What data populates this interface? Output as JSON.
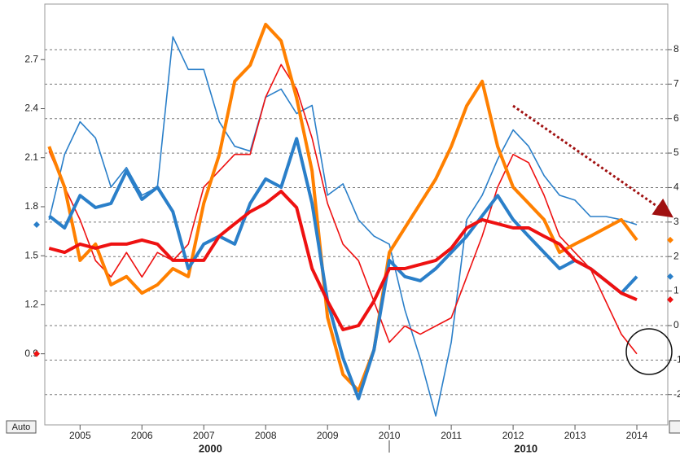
{
  "chart_data": {
    "type": "line",
    "x": [
      2004.5,
      2004.75,
      2005,
      2005.25,
      2005.5,
      2005.75,
      2006,
      2006.25,
      2006.5,
      2006.75,
      2007,
      2007.25,
      2007.5,
      2007.75,
      2008,
      2008.25,
      2008.5,
      2008.75,
      2009,
      2009.25,
      2009.5,
      2009.75,
      2010,
      2010.25,
      2010.5,
      2010.75,
      2011,
      2011.25,
      2011.5,
      2011.75,
      2012,
      2012.25,
      2012.5,
      2012.75,
      2013,
      2013.25,
      2013.5,
      2013.75,
      2014
    ],
    "xlim": [
      2004.43,
      2014.5
    ],
    "xticks": [
      2005,
      2006,
      2007,
      2008,
      2009,
      2010,
      2011,
      2012,
      2013,
      2014
    ],
    "x2lim": [
      1994.75,
      2014.5
    ],
    "x2ticks": [
      2000,
      2010
    ],
    "ylim": [
      0.465,
      3.04
    ],
    "yticks": [
      0.9,
      1.2,
      1.5,
      1.8,
      2.1,
      2.4,
      2.7
    ],
    "y2lim": [
      -2.88,
      9.32
    ],
    "y2ticks": [
      -2,
      -1,
      0,
      1,
      2,
      3,
      4,
      5,
      6,
      7,
      8
    ],
    "grid": true,
    "auto_label": "Auto",
    "series": [
      {
        "color": "#2a7fc9",
        "weight": "thin",
        "axis": "y",
        "values": [
          1.72,
          2.12,
          2.32,
          2.22,
          1.92,
          2.04,
          1.87,
          1.92,
          2.84,
          2.64,
          2.64,
          2.32,
          2.17,
          2.14,
          2.47,
          2.52,
          2.37,
          2.42,
          1.87,
          1.94,
          1.72,
          1.62,
          1.57,
          1.17,
          0.87,
          0.52,
          0.97,
          1.72,
          1.87,
          2.09,
          2.27,
          2.17,
          1.99,
          1.87,
          1.84,
          1.74,
          1.74,
          1.72,
          1.69
        ]
      },
      {
        "color": "#ee1111",
        "weight": "thin",
        "axis": "y",
        "values": [
          2.14,
          1.92,
          1.72,
          1.47,
          1.37,
          1.52,
          1.37,
          1.52,
          1.47,
          1.57,
          1.92,
          2.02,
          2.12,
          2.12,
          2.47,
          2.67,
          2.52,
          2.22,
          1.82,
          1.57,
          1.47,
          1.22,
          0.97,
          1.07,
          1.02,
          1.07,
          1.12,
          1.37,
          1.62,
          1.92,
          2.12,
          2.07,
          1.87,
          1.62,
          1.52,
          1.42,
          1.22,
          1.02,
          0.9
        ]
      },
      {
        "color": "#ff8000",
        "weight": "thick",
        "axis": "y2",
        "values": [
          5.19,
          4.01,
          1.89,
          2.36,
          1.18,
          1.42,
          0.94,
          1.18,
          1.65,
          1.42,
          3.54,
          4.95,
          7.08,
          7.55,
          8.73,
          8.25,
          6.6,
          4.48,
          0.24,
          -1.42,
          -1.89,
          -0.71,
          2.12,
          2.83,
          3.54,
          4.25,
          5.19,
          6.37,
          7.08,
          5.19,
          4.01,
          3.54,
          3.07,
          2.12,
          2.36,
          2.59,
          2.83,
          3.07,
          2.48
        ]
      },
      {
        "color": "#2a7fc9",
        "weight": "thick",
        "axis": "y2",
        "values": [
          3.18,
          2.83,
          3.77,
          3.42,
          3.54,
          4.48,
          3.66,
          4.01,
          3.3,
          1.65,
          2.36,
          2.59,
          2.36,
          3.54,
          4.25,
          4.01,
          5.42,
          3.54,
          0.71,
          -0.94,
          -2.12,
          -0.71,
          1.89,
          1.42,
          1.3,
          1.65,
          2.12,
          2.59,
          3.18,
          3.77,
          3.07,
          2.59,
          2.12,
          1.65,
          1.89,
          1.65,
          1.3,
          0.94,
          1.42
        ]
      },
      {
        "color": "#ee1111",
        "weight": "thick",
        "axis": "y2",
        "values": [
          2.24,
          2.12,
          2.36,
          2.24,
          2.36,
          2.36,
          2.48,
          2.36,
          1.89,
          1.89,
          1.89,
          2.59,
          2.95,
          3.3,
          3.54,
          3.89,
          3.42,
          1.65,
          0.71,
          -0.12,
          0,
          0.71,
          1.65,
          1.65,
          1.77,
          1.89,
          2.24,
          2.83,
          3.07,
          2.95,
          2.83,
          2.83,
          2.59,
          2.36,
          1.89,
          1.65,
          1.3,
          0.94,
          0.75
        ]
      }
    ]
  }
}
